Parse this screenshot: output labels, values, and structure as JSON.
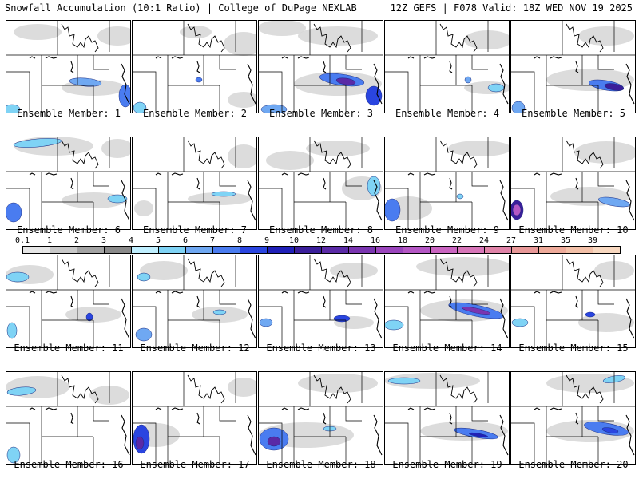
{
  "header": {
    "left": "Snowfall Accumulation (10:1 Ratio) | College of DuPage NEXLAB",
    "right": "12Z GEFS | F078 Valid: 18Z WED NOV 19 2025"
  },
  "legend": {
    "ticks": [
      "0.1",
      "1",
      "2",
      "3",
      "4",
      "5",
      "6",
      "7",
      "8",
      "9",
      "10",
      "12",
      "14",
      "16",
      "18",
      "20",
      "22",
      "24",
      "27",
      "31",
      "35",
      "39"
    ],
    "colors": [
      "#e6e6e6",
      "#c8c8c8",
      "#a3a3a3",
      "#8a8a8a",
      "#bfefff",
      "#7fd3f5",
      "#6fa8f2",
      "#4a7cf0",
      "#2a45e0",
      "#2020b8",
      "#3a1e9a",
      "#5a2aa6",
      "#7a35b0",
      "#9a45bc",
      "#b457c4",
      "#c964c0",
      "#d775b8",
      "#e083a8",
      "#e89898",
      "#eeaa9a",
      "#f3c0a8",
      "#f8d8c0"
    ]
  },
  "panels": [
    {
      "label": "Ensemble Member: 1",
      "snow": [
        {
          "cx": 100,
          "cy": 78,
          "rx": 20,
          "ry": 5,
          "rot": 5,
          "c": "#6fa8f2"
        },
        {
          "cx": 150,
          "cy": 95,
          "rx": 8,
          "ry": 14,
          "rot": 0,
          "c": "#4a7cf0"
        },
        {
          "cx": 8,
          "cy": 112,
          "rx": 10,
          "ry": 6,
          "rot": 0,
          "c": "#7fd3f5"
        }
      ],
      "gray": [
        {
          "cx": 140,
          "cy": 20,
          "rx": 25,
          "ry": 12
        },
        {
          "cx": 40,
          "cy": 15,
          "rx": 30,
          "ry": 10
        },
        {
          "cx": 110,
          "cy": 85,
          "rx": 40,
          "ry": 10
        }
      ]
    },
    {
      "label": "Ensemble Member: 2",
      "snow": [
        {
          "cx": 84,
          "cy": 75,
          "rx": 4,
          "ry": 3,
          "rot": 0,
          "c": "#4a7cf0"
        },
        {
          "cx": 10,
          "cy": 110,
          "rx": 8,
          "ry": 7,
          "rot": 0,
          "c": "#7fd3f5"
        }
      ],
      "gray": [
        {
          "cx": 140,
          "cy": 30,
          "rx": 25,
          "ry": 15
        },
        {
          "cx": 80,
          "cy": 15,
          "rx": 20,
          "ry": 8
        },
        {
          "cx": 140,
          "cy": 100,
          "rx": 20,
          "ry": 10
        }
      ]
    },
    {
      "label": "Ensemble Member: 3",
      "snow": [
        {
          "cx": 105,
          "cy": 75,
          "rx": 28,
          "ry": 7,
          "rot": 8,
          "c": "#4a7cf0"
        },
        {
          "cx": 110,
          "cy": 77,
          "rx": 12,
          "ry": 4,
          "rot": 8,
          "c": "#5a2aa6"
        },
        {
          "cx": 145,
          "cy": 95,
          "rx": 10,
          "ry": 12,
          "rot": 0,
          "c": "#2a45e0"
        },
        {
          "cx": 20,
          "cy": 112,
          "rx": 16,
          "ry": 6,
          "rot": 0,
          "c": "#6fa8f2"
        }
      ],
      "gray": [
        {
          "cx": 100,
          "cy": 20,
          "rx": 50,
          "ry": 12
        },
        {
          "cx": 30,
          "cy": 10,
          "rx": 30,
          "ry": 10
        },
        {
          "cx": 100,
          "cy": 80,
          "rx": 55,
          "ry": 15
        }
      ]
    },
    {
      "label": "Ensemble Member: 4",
      "snow": [
        {
          "cx": 105,
          "cy": 75,
          "rx": 4,
          "ry": 4,
          "rot": 0,
          "c": "#6fa8f2"
        },
        {
          "cx": 140,
          "cy": 85,
          "rx": 10,
          "ry": 5,
          "rot": 0,
          "c": "#7fd3f5"
        }
      ],
      "gray": [
        {
          "cx": 130,
          "cy": 25,
          "rx": 30,
          "ry": 12
        },
        {
          "cx": 130,
          "cy": 85,
          "rx": 30,
          "ry": 8
        }
      ]
    },
    {
      "label": "Ensemble Member: 5",
      "snow": [
        {
          "cx": 120,
          "cy": 82,
          "rx": 22,
          "ry": 6,
          "rot": 10,
          "c": "#4a7cf0"
        },
        {
          "cx": 130,
          "cy": 84,
          "rx": 12,
          "ry": 4,
          "rot": 10,
          "c": "#3a1e9a"
        },
        {
          "cx": 10,
          "cy": 110,
          "rx": 8,
          "ry": 8,
          "rot": 0,
          "c": "#6fa8f2"
        }
      ],
      "gray": [
        {
          "cx": 120,
          "cy": 20,
          "rx": 35,
          "ry": 12
        },
        {
          "cx": 100,
          "cy": 75,
          "rx": 55,
          "ry": 14
        }
      ]
    },
    {
      "label": "Ensemble Member: 6",
      "snow": [
        {
          "cx": 40,
          "cy": 8,
          "rx": 30,
          "ry": 5,
          "rot": -5,
          "c": "#7fd3f5"
        },
        {
          "cx": 140,
          "cy": 78,
          "rx": 12,
          "ry": 5,
          "rot": 0,
          "c": "#7fd3f5"
        },
        {
          "cx": 10,
          "cy": 95,
          "rx": 10,
          "ry": 12,
          "rot": 0,
          "c": "#4a7cf0"
        }
      ],
      "gray": [
        {
          "cx": 60,
          "cy": 12,
          "rx": 50,
          "ry": 12
        },
        {
          "cx": 140,
          "cy": 15,
          "rx": 20,
          "ry": 12
        },
        {
          "cx": 110,
          "cy": 80,
          "rx": 40,
          "ry": 10
        }
      ]
    },
    {
      "label": "Ensemble Member: 7",
      "snow": [
        {
          "cx": 115,
          "cy": 72,
          "rx": 15,
          "ry": 3,
          "rot": 0,
          "c": "#7fd3f5"
        }
      ],
      "gray": [
        {
          "cx": 140,
          "cy": 25,
          "rx": 20,
          "ry": 15
        },
        {
          "cx": 110,
          "cy": 78,
          "rx": 40,
          "ry": 8
        },
        {
          "cx": 15,
          "cy": 90,
          "rx": 12,
          "ry": 10
        }
      ]
    },
    {
      "label": "Ensemble Member: 8",
      "snow": [
        {
          "cx": 145,
          "cy": 62,
          "rx": 8,
          "ry": 12,
          "rot": 0,
          "c": "#7fd3f5"
        }
      ],
      "gray": [
        {
          "cx": 40,
          "cy": 30,
          "rx": 30,
          "ry": 12
        },
        {
          "cx": 100,
          "cy": 15,
          "rx": 40,
          "ry": 10
        },
        {
          "cx": 130,
          "cy": 65,
          "rx": 25,
          "ry": 15
        }
      ]
    },
    {
      "label": "Ensemble Member: 9",
      "snow": [
        {
          "cx": 10,
          "cy": 92,
          "rx": 10,
          "ry": 14,
          "rot": 0,
          "c": "#4a7cf0"
        },
        {
          "cx": 95,
          "cy": 75,
          "rx": 4,
          "ry": 3,
          "rot": 0,
          "c": "#7fd3f5"
        }
      ],
      "gray": [
        {
          "cx": 120,
          "cy": 15,
          "rx": 40,
          "ry": 10
        },
        {
          "cx": 30,
          "cy": 90,
          "rx": 30,
          "ry": 15
        }
      ]
    },
    {
      "label": "Ensemble Member: 10",
      "snow": [
        {
          "cx": 8,
          "cy": 92,
          "rx": 8,
          "ry": 12,
          "rot": 0,
          "c": "#3a1e9a"
        },
        {
          "cx": 8,
          "cy": 92,
          "rx": 5,
          "ry": 7,
          "rot": 0,
          "c": "#b457c4"
        },
        {
          "cx": 130,
          "cy": 82,
          "rx": 20,
          "ry": 5,
          "rot": 10,
          "c": "#6fa8f2"
        }
      ],
      "gray": [
        {
          "cx": 120,
          "cy": 20,
          "rx": 40,
          "ry": 14
        },
        {
          "cx": 100,
          "cy": 75,
          "rx": 50,
          "ry": 12
        }
      ]
    },
    {
      "label": "Ensemble Member: 11",
      "snow": [
        {
          "cx": 15,
          "cy": 28,
          "rx": 14,
          "ry": 6,
          "rot": 0,
          "c": "#7fd3f5"
        },
        {
          "cx": 105,
          "cy": 78,
          "rx": 4,
          "ry": 5,
          "rot": 0,
          "c": "#2a45e0"
        },
        {
          "cx": 8,
          "cy": 95,
          "rx": 6,
          "ry": 10,
          "rot": 0,
          "c": "#7fd3f5"
        }
      ],
      "gray": [
        {
          "cx": 30,
          "cy": 25,
          "rx": 30,
          "ry": 12
        },
        {
          "cx": 110,
          "cy": 75,
          "rx": 35,
          "ry": 10
        }
      ]
    },
    {
      "label": "Ensemble Member: 12",
      "snow": [
        {
          "cx": 15,
          "cy": 28,
          "rx": 8,
          "ry": 5,
          "rot": 0,
          "c": "#7fd3f5"
        },
        {
          "cx": 110,
          "cy": 72,
          "rx": 8,
          "ry": 3,
          "rot": 0,
          "c": "#7fd3f5"
        },
        {
          "cx": 15,
          "cy": 100,
          "rx": 10,
          "ry": 8,
          "rot": 0,
          "c": "#6fa8f2"
        }
      ],
      "gray": [
        {
          "cx": 40,
          "cy": 20,
          "rx": 30,
          "ry": 12
        },
        {
          "cx": 110,
          "cy": 75,
          "rx": 35,
          "ry": 10
        }
      ]
    },
    {
      "label": "Ensemble Member: 13",
      "snow": [
        {
          "cx": 105,
          "cy": 80,
          "rx": 10,
          "ry": 4,
          "rot": 0,
          "c": "#2a45e0"
        },
        {
          "cx": 10,
          "cy": 85,
          "rx": 8,
          "ry": 5,
          "rot": 0,
          "c": "#6fa8f2"
        }
      ],
      "gray": [
        {
          "cx": 120,
          "cy": 20,
          "rx": 30,
          "ry": 10
        },
        {
          "cx": 120,
          "cy": 85,
          "rx": 25,
          "ry": 8
        }
      ]
    },
    {
      "label": "Ensemble Member: 14",
      "snow": [
        {
          "cx": 115,
          "cy": 70,
          "rx": 35,
          "ry": 7,
          "rot": 12,
          "c": "#4a7cf0"
        },
        {
          "cx": 115,
          "cy": 70,
          "rx": 18,
          "ry": 3,
          "rot": 12,
          "c": "#7a35b0"
        },
        {
          "cx": 12,
          "cy": 88,
          "rx": 12,
          "ry": 6,
          "rot": 0,
          "c": "#7fd3f5"
        }
      ],
      "gray": [
        {
          "cx": 100,
          "cy": 15,
          "rx": 60,
          "ry": 12
        },
        {
          "cx": 100,
          "cy": 70,
          "rx": 55,
          "ry": 14
        }
      ]
    },
    {
      "label": "Ensemble Member: 15",
      "snow": [
        {
          "cx": 100,
          "cy": 75,
          "rx": 6,
          "ry": 3,
          "rot": 0,
          "c": "#2a45e0"
        },
        {
          "cx": 12,
          "cy": 85,
          "rx": 10,
          "ry": 5,
          "rot": 0,
          "c": "#7fd3f5"
        }
      ],
      "gray": [
        {
          "cx": 130,
          "cy": 20,
          "rx": 25,
          "ry": 12
        },
        {
          "cx": 120,
          "cy": 85,
          "rx": 35,
          "ry": 12
        }
      ]
    },
    {
      "label": "Ensemble Member: 16",
      "snow": [
        {
          "cx": 20,
          "cy": 25,
          "rx": 18,
          "ry": 5,
          "rot": -5,
          "c": "#7fd3f5"
        },
        {
          "cx": 10,
          "cy": 105,
          "rx": 8,
          "ry": 10,
          "rot": 0,
          "c": "#7fd3f5"
        }
      ],
      "gray": [
        {
          "cx": 40,
          "cy": 20,
          "rx": 40,
          "ry": 14
        },
        {
          "cx": 130,
          "cy": 30,
          "rx": 25,
          "ry": 12
        }
      ]
    },
    {
      "label": "Ensemble Member: 17",
      "snow": [
        {
          "cx": 12,
          "cy": 85,
          "rx": 10,
          "ry": 18,
          "rot": 0,
          "c": "#2a45e0"
        },
        {
          "cx": 10,
          "cy": 90,
          "rx": 5,
          "ry": 8,
          "rot": 0,
          "c": "#5a2aa6"
        }
      ],
      "gray": [
        {
          "cx": 140,
          "cy": 20,
          "rx": 20,
          "ry": 12
        },
        {
          "cx": 30,
          "cy": 80,
          "rx": 30,
          "ry": 15
        }
      ]
    },
    {
      "label": "Ensemble Member: 18",
      "snow": [
        {
          "cx": 20,
          "cy": 85,
          "rx": 18,
          "ry": 14,
          "rot": 0,
          "c": "#4a7cf0"
        },
        {
          "cx": 20,
          "cy": 88,
          "rx": 8,
          "ry": 6,
          "rot": 0,
          "c": "#5a2aa6"
        },
        {
          "cx": 90,
          "cy": 72,
          "rx": 8,
          "ry": 3,
          "rot": 0,
          "c": "#7fd3f5"
        }
      ],
      "gray": [
        {
          "cx": 100,
          "cy": 15,
          "rx": 50,
          "ry": 12
        },
        {
          "cx": 60,
          "cy": 80,
          "rx": 60,
          "ry": 16
        }
      ]
    },
    {
      "label": "Ensemble Member: 19",
      "snow": [
        {
          "cx": 115,
          "cy": 78,
          "rx": 28,
          "ry": 5,
          "rot": 10,
          "c": "#4a7cf0"
        },
        {
          "cx": 118,
          "cy": 80,
          "rx": 12,
          "ry": 2,
          "rot": 10,
          "c": "#2020b8"
        },
        {
          "cx": 25,
          "cy": 12,
          "rx": 20,
          "ry": 4,
          "rot": 0,
          "c": "#7fd3f5"
        }
      ],
      "gray": [
        {
          "cx": 60,
          "cy": 12,
          "rx": 60,
          "ry": 10
        },
        {
          "cx": 100,
          "cy": 75,
          "rx": 55,
          "ry": 12
        }
      ]
    },
    {
      "label": "Ensemble Member: 20",
      "snow": [
        {
          "cx": 120,
          "cy": 72,
          "rx": 28,
          "ry": 7,
          "rot": 10,
          "c": "#4a7cf0"
        },
        {
          "cx": 125,
          "cy": 74,
          "rx": 10,
          "ry": 3,
          "rot": 10,
          "c": "#2a45e0"
        },
        {
          "cx": 130,
          "cy": 10,
          "rx": 14,
          "ry": 4,
          "rot": -10,
          "c": "#7fd3f5"
        }
      ],
      "gray": [
        {
          "cx": 100,
          "cy": 15,
          "rx": 55,
          "ry": 12
        },
        {
          "cx": 100,
          "cy": 75,
          "rx": 55,
          "ry": 14
        }
      ]
    }
  ]
}
